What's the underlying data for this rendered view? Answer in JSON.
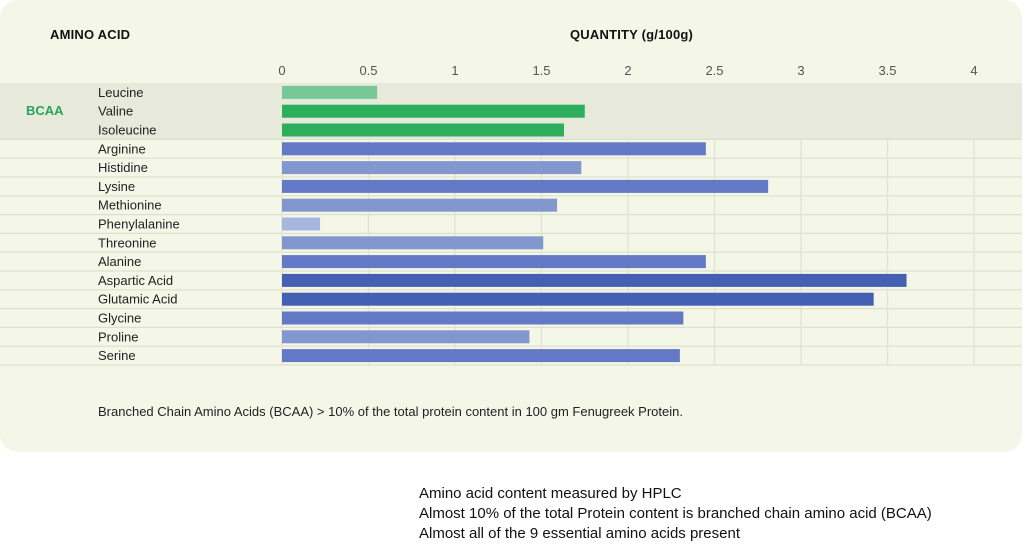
{
  "header": {
    "label_column": "AMINO ACID",
    "quantity_column": "QUANTITY (g/100g)"
  },
  "group_label": "BCAA",
  "chart_data": {
    "type": "bar",
    "orientation": "horizontal",
    "ylabel": "AMINO ACID",
    "xlabel": "QUANTITY (g/100g)",
    "xlim": [
      0,
      4
    ],
    "xticks": [
      "0",
      "0.5",
      "1",
      "1.5",
      "2",
      "2.5",
      "3",
      "3.5",
      "4"
    ],
    "grid": true,
    "categories": [
      "Leucine",
      "Valine",
      "Isoleucine",
      "Arginine",
      "Histidine",
      "Lysine",
      "Methionine",
      "Phenylalanine",
      "Threonine",
      "Alanine",
      "Aspartic Acid",
      "Glutamic Acid",
      "Glycine",
      "Proline",
      "Serine"
    ],
    "values": [
      0.55,
      1.75,
      1.63,
      2.45,
      1.73,
      2.81,
      1.59,
      0.22,
      1.51,
      2.45,
      3.61,
      3.42,
      2.32,
      1.43,
      2.3
    ],
    "groups": [
      {
        "name": "BCAA",
        "members": [
          "Leucine",
          "Valine",
          "Isoleucine"
        ]
      }
    ],
    "colors": [
      "#76c898",
      "#2cae5c",
      "#2cae5c",
      "#6479c6",
      "#8397cf",
      "#6479c6",
      "#8397cf",
      "#a8b5e0",
      "#8397cf",
      "#6479c6",
      "#4460b3",
      "#4460b3",
      "#6479c6",
      "#8397cf",
      "#6479c6"
    ]
  },
  "footnote": "Branched Chain Amino Acids (BCAA) > 10% of the total protein content in 100 gm Fenugreek Protein.",
  "notes": [
    "Amino acid content measured by HPLC",
    "Almost 10% of the total Protein content is branched chain amino acid (BCAA)",
    "Almost all of the 9 essential amino acids present"
  ]
}
